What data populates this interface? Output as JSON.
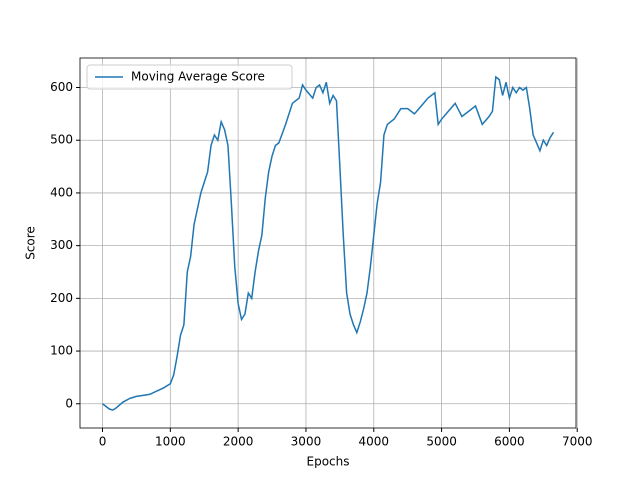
{
  "chart_data": {
    "type": "line",
    "xlabel": "Epochs",
    "ylabel": "Score",
    "x": [
      0,
      100,
      150,
      200,
      300,
      400,
      500,
      600,
      700,
      800,
      900,
      1000,
      1050,
      1100,
      1150,
      1200,
      1250,
      1300,
      1350,
      1400,
      1450,
      1500,
      1550,
      1600,
      1650,
      1700,
      1750,
      1800,
      1850,
      1900,
      1950,
      2000,
      2050,
      2100,
      2150,
      2200,
      2250,
      2300,
      2350,
      2400,
      2450,
      2500,
      2550,
      2600,
      2700,
      2800,
      2900,
      2950,
      3000,
      3100,
      3150,
      3200,
      3250,
      3300,
      3350,
      3400,
      3450,
      3500,
      3550,
      3600,
      3650,
      3700,
      3750,
      3800,
      3850,
      3900,
      3950,
      4000,
      4050,
      4100,
      4150,
      4200,
      4300,
      4400,
      4500,
      4600,
      4700,
      4800,
      4900,
      4950,
      5000,
      5100,
      5200,
      5300,
      5400,
      5500,
      5600,
      5700,
      5750,
      5800,
      5850,
      5900,
      5950,
      6000,
      6050,
      6100,
      6150,
      6200,
      6250,
      6300,
      6350,
      6400,
      6450,
      6500,
      6550,
      6600,
      6650
    ],
    "series": [
      {
        "name": "Moving Average Score",
        "color": "#1f77b4",
        "values": [
          0,
          -10,
          -12,
          -8,
          3,
          10,
          14,
          16,
          18,
          24,
          30,
          38,
          55,
          90,
          130,
          150,
          250,
          280,
          340,
          370,
          400,
          420,
          440,
          490,
          510,
          500,
          535,
          520,
          490,
          380,
          260,
          190,
          160,
          170,
          210,
          200,
          250,
          290,
          320,
          390,
          440,
          470,
          490,
          495,
          530,
          570,
          580,
          605,
          595,
          580,
          600,
          605,
          590,
          610,
          570,
          585,
          575,
          450,
          320,
          210,
          170,
          150,
          135,
          155,
          180,
          210,
          260,
          320,
          380,
          420,
          510,
          530,
          540,
          560,
          560,
          550,
          565,
          580,
          590,
          530,
          540,
          555,
          570,
          545,
          555,
          565,
          530,
          545,
          555,
          620,
          615,
          585,
          610,
          580,
          600,
          590,
          600,
          595,
          600,
          560,
          510,
          495,
          480,
          500,
          490,
          505,
          515
        ]
      }
    ],
    "xlim": [
      -332,
      6982
    ],
    "ylim": [
      -46,
      656
    ],
    "xticks": [
      0,
      1000,
      2000,
      3000,
      4000,
      5000,
      6000,
      7000
    ],
    "yticks": [
      0,
      100,
      200,
      300,
      400,
      500,
      600
    ],
    "grid": true,
    "legend": "upper left"
  }
}
